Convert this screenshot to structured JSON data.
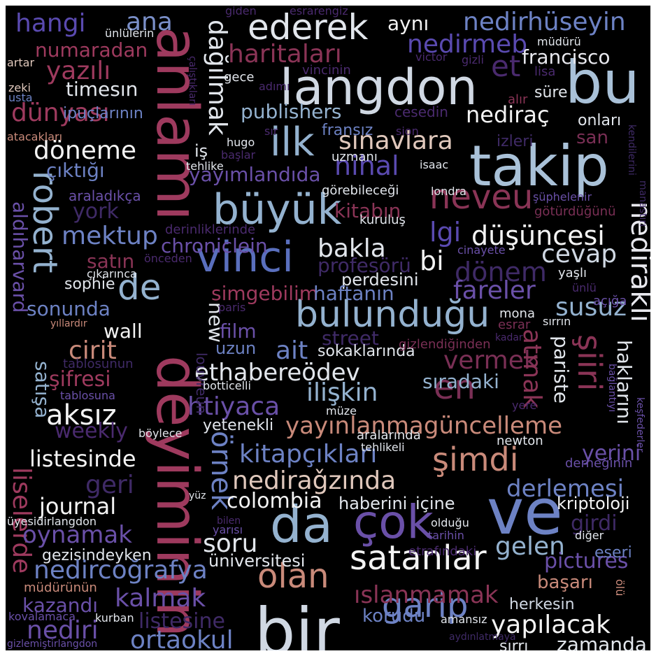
{
  "colors": {
    "background": "#000000",
    "palette": [
      "#c9d3e0",
      "#94b2cf",
      "#6d82c4",
      "#6a50a8",
      "#3f2a66",
      "#9e3a5e",
      "#c98a7a",
      "#e8d8d0",
      "#f3f3f3"
    ]
  },
  "words": [
    {
      "text": "bir",
      "color": "#d0d8e3"
    },
    {
      "text": "deyiminin",
      "color": "#9e3a5e"
    },
    {
      "text": "anlamı",
      "color": "#9e3a5e"
    },
    {
      "text": "langdon",
      "color": "#d0d8e3"
    },
    {
      "text": "bu",
      "color": "#a9c1d8"
    },
    {
      "text": "takip",
      "color": "#a9c1d8"
    },
    {
      "text": "ve",
      "color": "#6d82c4"
    },
    {
      "text": "çok",
      "color": "#6a50a8"
    },
    {
      "text": "da",
      "color": "#94b2cf"
    },
    {
      "text": "vinci",
      "color": "#5a6fbd"
    },
    {
      "text": "büyük",
      "color": "#94b2cf"
    },
    {
      "text": "ilk",
      "color": "#94b2cf"
    },
    {
      "text": "bulunduğu",
      "color": "#94b2cf"
    },
    {
      "text": "satanlar",
      "color": "#f3f3f3"
    },
    {
      "text": "ederek",
      "color": "#e2e6ec"
    },
    {
      "text": "robert",
      "color": "#94b2cf"
    },
    {
      "text": "neveu",
      "color": "#8a3456"
    },
    {
      "text": "en",
      "color": "#7a2f55"
    },
    {
      "text": "olan",
      "color": "#c98a7a"
    },
    {
      "text": "şimdi",
      "color": "#c98a7a"
    },
    {
      "text": "garip",
      "color": "#6d82c4"
    },
    {
      "text": "de",
      "color": "#94b2cf"
    },
    {
      "text": "et",
      "color": "#4a2a6e"
    },
    {
      "text": "nihal",
      "color": "#5a4ab0"
    },
    {
      "text": "nediraklı",
      "color": "#e8e8ee"
    },
    {
      "text": "sınavlara",
      "color": "#e0c8bc"
    },
    {
      "text": "dağılmak",
      "color": "#e2e6ec"
    },
    {
      "text": "dünyası",
      "color": "#9e3a5e"
    },
    {
      "text": "yazılı",
      "color": "#9e3a5e"
    },
    {
      "text": "haritaları",
      "color": "#8a3456"
    },
    {
      "text": "nedirhüseyin",
      "color": "#6d82c4"
    },
    {
      "text": "hangi",
      "color": "#5a4ab0"
    },
    {
      "text": "ana",
      "color": "#7a8fc8"
    },
    {
      "text": "aynı",
      "color": "#f3f3f3"
    },
    {
      "text": "nedirmeb",
      "color": "#5a4ab0"
    },
    {
      "text": "francisco",
      "color": "#e8e8ee"
    },
    {
      "text": "numaradan",
      "color": "#9e3a5e"
    },
    {
      "text": "timesın",
      "color": "#e2e6ec"
    },
    {
      "text": "publishers",
      "color": "#94b2cf"
    },
    {
      "text": "nediraç",
      "color": "#f3f3f3"
    },
    {
      "text": "döneme",
      "color": "#f3f3f3"
    },
    {
      "text": "çıktığı",
      "color": "#6d82c4"
    },
    {
      "text": "yayımlandıda",
      "color": "#6a50a8"
    },
    {
      "text": "aldıharvard",
      "color": "#6a50a8"
    },
    {
      "text": "york",
      "color": "#3f2a66"
    },
    {
      "text": "mektup",
      "color": "#6d82c4"
    },
    {
      "text": "chroniclein",
      "color": "#6a50a8"
    },
    {
      "text": "bakla",
      "color": "#e2e6ec"
    },
    {
      "text": "düşüncesi",
      "color": "#f3f3f3"
    },
    {
      "text": "kitabın",
      "color": "#8a3456"
    },
    {
      "text": "lgi",
      "color": "#5a4ab0"
    },
    {
      "text": "cevap",
      "color": "#d0d8e3"
    },
    {
      "text": "dönem",
      "color": "#3f2a66"
    },
    {
      "text": "bi",
      "color": "#f3f3f3"
    },
    {
      "text": "satın",
      "color": "#8a3456"
    },
    {
      "text": "sophie",
      "color": "#e2e6ec"
    },
    {
      "text": "profesörü",
      "color": "#3f2a66"
    },
    {
      "text": "perdesini",
      "color": "#e2e6ec"
    },
    {
      "text": "simgebilim",
      "color": "#9e3a5e"
    },
    {
      "text": "haftanın",
      "color": "#6d82c4"
    },
    {
      "text": "fareler",
      "color": "#6a50a8"
    },
    {
      "text": "susuz",
      "color": "#94b2cf"
    },
    {
      "text": "sonunda",
      "color": "#6d82c4"
    },
    {
      "text": "new",
      "color": "#e2e6ec"
    },
    {
      "text": "wall",
      "color": "#f3f3f3"
    },
    {
      "text": "film",
      "color": "#6a50a8"
    },
    {
      "text": "uzun",
      "color": "#6d82c4"
    },
    {
      "text": "ait",
      "color": "#6d82c4"
    },
    {
      "text": "street",
      "color": "#3f2a66"
    },
    {
      "text": "vermek",
      "color": "#7a2f55"
    },
    {
      "text": "atmak",
      "color": "#8a3456"
    },
    {
      "text": "pariste",
      "color": "#e2e6ec"
    },
    {
      "text": "şiiri",
      "color": "#8a3456"
    },
    {
      "text": "haklarını",
      "color": "#e2e6ec"
    },
    {
      "text": "cirit",
      "color": "#c98a7a"
    },
    {
      "text": "ethabereödev",
      "color": "#e2e6ec"
    },
    {
      "text": "satışa",
      "color": "#94b2cf"
    },
    {
      "text": "şifresi",
      "color": "#9e3a5e"
    },
    {
      "text": "htiyaca",
      "color": "#6a50a8"
    },
    {
      "text": "ilişkin",
      "color": "#94b2cf"
    },
    {
      "text": "sıradaki",
      "color": "#94b2cf"
    },
    {
      "text": "aksız",
      "color": "#f3f3f3"
    },
    {
      "text": "weekly",
      "color": "#4a2a6e"
    },
    {
      "text": "yayınlanmagüncelleme",
      "color": "#c98a7a"
    },
    {
      "text": "listesinde",
      "color": "#f3f3f3"
    },
    {
      "text": "kitapçıkları",
      "color": "#6d82c4"
    },
    {
      "text": "yerini",
      "color": "#6a50a8"
    },
    {
      "text": "geri",
      "color": "#3f2a66"
    },
    {
      "text": "örnek",
      "color": "#6d82c4"
    },
    {
      "text": "nediraǧzında",
      "color": "#e0c8bc"
    },
    {
      "text": "derlemesi",
      "color": "#6d82c4"
    },
    {
      "text": "liselerde",
      "color": "#9e3a5e"
    },
    {
      "text": "journal",
      "color": "#f3f3f3"
    },
    {
      "text": "colombia",
      "color": "#f3f3f3"
    },
    {
      "text": "haberini",
      "color": "#e2e6ec"
    },
    {
      "text": "içine",
      "color": "#e2e6ec"
    },
    {
      "text": "kriptoloji",
      "color": "#f3f3f3"
    },
    {
      "text": "oynamak",
      "color": "#6a50a8"
    },
    {
      "text": "soru",
      "color": "#e2e6ec"
    },
    {
      "text": "gelen",
      "color": "#94b2cf"
    },
    {
      "text": "girdi",
      "color": "#3f2a66"
    },
    {
      "text": "gezisindeyken",
      "color": "#e2e6ec"
    },
    {
      "text": "üniversitesi",
      "color": "#e2e6ec"
    },
    {
      "text": "pictures",
      "color": "#6a50a8"
    },
    {
      "text": "nedircoğrafya",
      "color": "#6d82c4"
    },
    {
      "text": "eseri",
      "color": "#6d82c4"
    },
    {
      "text": "başarı",
      "color": "#c98a7a"
    },
    {
      "text": "kalmak",
      "color": "#6a50a8"
    },
    {
      "text": "kazandı",
      "color": "#6a50a8"
    },
    {
      "text": "ıslanmamak",
      "color": "#8a3456"
    },
    {
      "text": "herkesin",
      "color": "#d0d8e3"
    },
    {
      "text": "listesine",
      "color": "#3f2a66"
    },
    {
      "text": "korudu",
      "color": "#6d82c4"
    },
    {
      "text": "yapılacak",
      "color": "#f3f3f3"
    },
    {
      "text": "nediri",
      "color": "#6a50a8"
    },
    {
      "text": "ortaokul",
      "color": "#6d82c4"
    },
    {
      "text": "zamanda",
      "color": "#e2e6ec"
    },
    {
      "text": "sırrı",
      "color": "#e2e6ec"
    },
    {
      "text": "giden",
      "color": "#4a2a6e"
    },
    {
      "text": "esrarengiz",
      "color": "#4a2a6e"
    },
    {
      "text": "ünlülerin",
      "color": "#e2e6ec"
    },
    {
      "text": "müdürü",
      "color": "#e2e6ec"
    },
    {
      "text": "artar",
      "color": "#e0c8bc"
    },
    {
      "text": "victor",
      "color": "#4a2a6e"
    },
    {
      "text": "gizli",
      "color": "#4a2a6e"
    },
    {
      "text": "zeki",
      "color": "#e0c8bc"
    },
    {
      "text": "usta",
      "color": "#6d82c4"
    },
    {
      "text": "gece",
      "color": "#e2e6ec"
    },
    {
      "text": "adımı",
      "color": "#4a2a6e"
    },
    {
      "text": "vincinin",
      "color": "#4a2a6e"
    },
    {
      "text": "lisa",
      "color": "#4a2a6e"
    },
    {
      "text": "alır",
      "color": "#8a3456"
    },
    {
      "text": "süre",
      "color": "#e2e6ec"
    },
    {
      "text": "çalıştıkları",
      "color": "#4a2a6e"
    },
    {
      "text": "ipuçlarının",
      "color": "#6d82c4"
    },
    {
      "text": "cesedin",
      "color": "#4a2a6e"
    },
    {
      "text": "onları",
      "color": "#e2e6ec"
    },
    {
      "text": "atacakları",
      "color": "#c98a7a"
    },
    {
      "text": "sır",
      "color": "#4a2a6e"
    },
    {
      "text": "fransız",
      "color": "#6d82c4"
    },
    {
      "text": "sion",
      "color": "#4a2a6e"
    },
    {
      "text": "san",
      "color": "#7a2f55"
    },
    {
      "text": "hugo",
      "color": "#e2e6ec"
    },
    {
      "text": "başlar",
      "color": "#4a2a6e"
    },
    {
      "text": "izleri",
      "color": "#3f2a66"
    },
    {
      "text": "tehlike",
      "color": "#e2e6ec"
    },
    {
      "text": "iş",
      "color": "#e2e6ec"
    },
    {
      "text": "uzmanı",
      "color": "#e2e6ec"
    },
    {
      "text": "isaac",
      "color": "#e2e6ec"
    },
    {
      "text": "görebileceği",
      "color": "#e2e6ec"
    },
    {
      "text": "londra",
      "color": "#e2e6ec"
    },
    {
      "text": "şüphelenir",
      "color": "#6a50a8"
    },
    {
      "text": "araladıkça",
      "color": "#6a50a8"
    },
    {
      "text": "götürdüğünü",
      "color": "#7a2f55"
    },
    {
      "text": "kendilerini",
      "color": "#3f2a66"
    },
    {
      "text": "manastırı",
      "color": "#3f2a66"
    },
    {
      "text": "kuruluş",
      "color": "#e2e6ec"
    },
    {
      "text": "derinliklerinde",
      "color": "#4a2a6e"
    },
    {
      "text": "cinayete",
      "color": "#6a50a8"
    },
    {
      "text": "önceden",
      "color": "#4a2a6e"
    },
    {
      "text": "yaşlı",
      "color": "#e2e6ec"
    },
    {
      "text": "çıkarınca",
      "color": "#e2e6ec"
    },
    {
      "text": "ünlü",
      "color": "#4a2a6e"
    },
    {
      "text": "açığa",
      "color": "#6a50a8"
    },
    {
      "text": "paris",
      "color": "#4a2a6e"
    },
    {
      "text": "sırrın",
      "color": "#e2e6ec"
    },
    {
      "text": "mona",
      "color": "#e2e6ec"
    },
    {
      "text": "esrar",
      "color": "#7a2f55"
    },
    {
      "text": "yıllardır",
      "color": "#c98a7a"
    },
    {
      "text": "kadar",
      "color": "#4a2a6e"
    },
    {
      "text": "sokaklarında",
      "color": "#e2e6ec"
    },
    {
      "text": "gizlendiğinden",
      "color": "#7a2f55"
    },
    {
      "text": "louvreun",
      "color": "#3f2a66"
    },
    {
      "text": "tablosunun",
      "color": "#3f2a66"
    },
    {
      "text": "bağlantıyı",
      "color": "#6a50a8"
    },
    {
      "text": "botticelli",
      "color": "#e2e6ec"
    },
    {
      "text": "tablosuna",
      "color": "#6a50a8"
    },
    {
      "text": "keşfederler",
      "color": "#6a50a8"
    },
    {
      "text": "yere",
      "color": "#4a2a6e"
    },
    {
      "text": "müze",
      "color": "#e2e6ec"
    },
    {
      "text": "böylece",
      "color": "#e2e6ec"
    },
    {
      "text": "yetenekli",
      "color": "#e2e6ec"
    },
    {
      "text": "aralarında",
      "color": "#e2e6ec"
    },
    {
      "text": "tehlikeli",
      "color": "#e2e6ec"
    },
    {
      "text": "newton",
      "color": "#e2e6ec"
    },
    {
      "text": "derneğinin",
      "color": "#6a50a8"
    },
    {
      "text": "yüz",
      "color": "#e2e6ec"
    },
    {
      "text": "üyesidirlangdon",
      "color": "#e2e6ec"
    },
    {
      "text": "bilen",
      "color": "#4a2a6e"
    },
    {
      "text": "yarısı",
      "color": "#6a50a8"
    },
    {
      "text": "olduğu",
      "color": "#e2e6ec"
    },
    {
      "text": "tarihin",
      "color": "#6a50a8"
    },
    {
      "text": "diğer",
      "color": "#e2e6ec"
    },
    {
      "text": "etrafındaki",
      "color": "#4a2a6e"
    },
    {
      "text": "müdürünün",
      "color": "#c98a7a"
    },
    {
      "text": "ölü",
      "color": "#c98a7a"
    },
    {
      "text": "amansız",
      "color": "#e2e6ec"
    },
    {
      "text": "kovalamaca",
      "color": "#6a50a8"
    },
    {
      "text": "kurban",
      "color": "#e2e6ec"
    },
    {
      "text": "aydınlatmaya",
      "color": "#3f2a66"
    },
    {
      "text": "gizlemiştirlangdon",
      "color": "#6a50a8"
    }
  ]
}
